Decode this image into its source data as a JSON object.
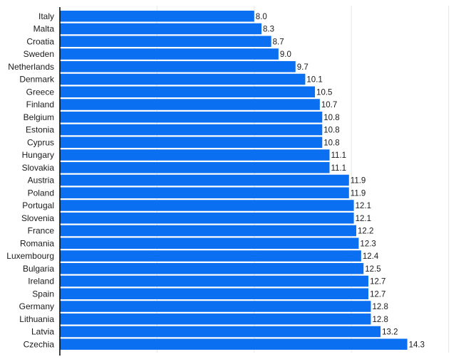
{
  "chart_data": {
    "type": "bar",
    "orientation": "horizontal",
    "categories": [
      "Italy",
      "Malta",
      "Croatia",
      "Sweden",
      "Netherlands",
      "Denmark",
      "Greece",
      "Finland",
      "Belgium",
      "Estonia",
      "Cyprus",
      "Hungary",
      "Slovakia",
      "Austria",
      "Poland",
      "Portugal",
      "Slovenia",
      "France",
      "Romania",
      "Luxembourg",
      "Bulgaria",
      "Ireland",
      "Spain",
      "Germany",
      "Lithuania",
      "Latvia",
      "Czechia"
    ],
    "values": [
      8.0,
      8.3,
      8.7,
      9.0,
      9.7,
      10.1,
      10.5,
      10.7,
      10.8,
      10.8,
      10.8,
      11.1,
      11.1,
      11.9,
      11.9,
      12.1,
      12.1,
      12.2,
      12.3,
      12.4,
      12.5,
      12.7,
      12.7,
      12.8,
      12.8,
      13.2,
      14.3
    ],
    "value_labels": [
      "8.0",
      "8.3",
      "8.7",
      "9.0",
      "9.7",
      "10.1",
      "10.5",
      "10.7",
      "10.8",
      "10.8",
      "10.8",
      "11.1",
      "11.1",
      "11.9",
      "11.9",
      "12.1",
      "12.1",
      "12.2",
      "12.3",
      "12.4",
      "12.5",
      "12.7",
      "12.7",
      "12.8",
      "12.8",
      "13.2",
      "14.3"
    ],
    "xlim": [
      0,
      16
    ],
    "title": "",
    "xlabel": "",
    "ylabel": "",
    "grid": true,
    "bar_color": "#0a6ff0"
  }
}
